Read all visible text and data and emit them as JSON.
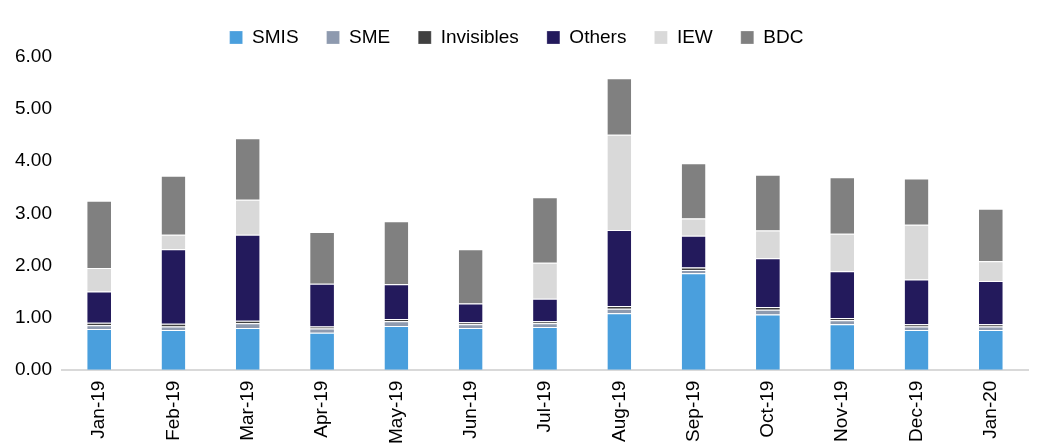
{
  "chart_data": {
    "type": "bar",
    "stacked": true,
    "categories": [
      "Jan-19",
      "Feb-19",
      "Mar-19",
      "Apr-19",
      "May-19",
      "Jun-19",
      "Jul-19",
      "Aug-19",
      "Sep-19",
      "Oct-19",
      "Nov-19",
      "Dec-19",
      "Jan-20"
    ],
    "series": [
      {
        "name": "SMIS",
        "color": "#4a9fdd",
        "values": [
          0.78,
          0.76,
          0.8,
          0.71,
          0.84,
          0.8,
          0.82,
          1.08,
          1.85,
          1.06,
          0.87,
          0.76,
          0.76
        ]
      },
      {
        "name": "SME",
        "color": "#8e9aaf",
        "values": [
          0.07,
          0.07,
          0.09,
          0.08,
          0.09,
          0.07,
          0.07,
          0.09,
          0.06,
          0.09,
          0.08,
          0.07,
          0.07
        ]
      },
      {
        "name": "Invisibles",
        "color": "#404040",
        "values": [
          0.05,
          0.05,
          0.05,
          0.04,
          0.04,
          0.04,
          0.04,
          0.05,
          0.05,
          0.05,
          0.04,
          0.04,
          0.04
        ]
      },
      {
        "name": "Others",
        "color": "#231a5c",
        "values": [
          0.6,
          1.43,
          1.65,
          0.82,
          0.67,
          0.36,
          0.43,
          1.46,
          0.61,
          0.94,
          0.9,
          0.86,
          0.83
        ]
      },
      {
        "name": "IEW",
        "color": "#d9d9d9",
        "values": [
          0.45,
          0.28,
          0.67,
          0,
          0,
          0,
          0.69,
          1.83,
          0.33,
          0.53,
          0.72,
          1.05,
          0.38
        ]
      },
      {
        "name": "BDC",
        "color": "#808080",
        "values": [
          1.29,
          1.13,
          1.18,
          0.99,
          1.21,
          1.04,
          1.26,
          1.08,
          1.06,
          1.07,
          1.08,
          0.89,
          1.01
        ]
      }
    ],
    "ylim": [
      0,
      6
    ],
    "yticks": [
      {
        "value": 0,
        "label": "0.00"
      },
      {
        "value": 1,
        "label": "1.00"
      },
      {
        "value": 2,
        "label": "2.00"
      },
      {
        "value": 3,
        "label": "3.00"
      },
      {
        "value": 4,
        "label": "4.00"
      },
      {
        "value": 5,
        "label": "5.00"
      },
      {
        "value": 6,
        "label": "6.00"
      }
    ],
    "grid": false,
    "legend": "top"
  }
}
